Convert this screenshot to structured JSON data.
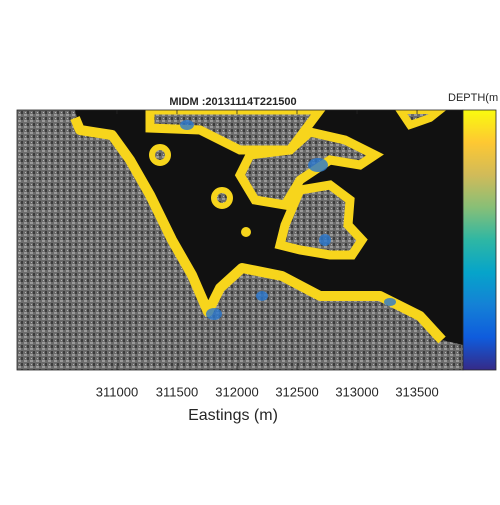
{
  "chart_data": {
    "type": "map",
    "title": "MIDM :20131114T221500",
    "x_label": "Eastings (m)",
    "colorbar_label": "DEPTH(m",
    "xlim": [
      310167,
      313883
    ],
    "xticks": [
      311000,
      311500,
      312000,
      312500,
      313000,
      313500
    ],
    "colormap": [
      "#352a87",
      "#0f5cdd",
      "#1481d6",
      "#06a4ca",
      "#2eb7a4",
      "#87bf77",
      "#d1bb59",
      "#fec832",
      "#f9fb0e"
    ]
  }
}
